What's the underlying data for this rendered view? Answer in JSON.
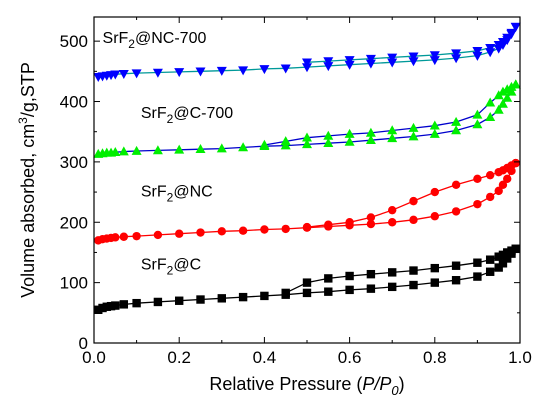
{
  "chart_data": {
    "type": "scatter",
    "title": "",
    "xlabel": "Relative Pressure (P/P0)",
    "xlabel_parts": {
      "prefix": "Relative Pressure (",
      "italic": "P/P",
      "subscript": "0",
      "suffix": ")"
    },
    "ylabel": "Volume absorbed, cm3/g,STP",
    "ylabel_parts": {
      "prefix": "Volume absorbed, cm",
      "superscript": "3",
      "suffix": "/g,STP"
    },
    "xlim": [
      0.0,
      1.0
    ],
    "ylim": [
      0,
      540
    ],
    "xticks": [
      "0.0",
      "0.2",
      "0.4",
      "0.6",
      "0.8",
      "1.0"
    ],
    "yticks": [
      "0",
      "100",
      "200",
      "300",
      "400",
      "500"
    ],
    "grid": false,
    "series": [
      {
        "name": "SrF2@C",
        "label_parts": {
          "base": "SrF",
          "subscript": "2",
          "rest": "@C"
        },
        "color": "#000000",
        "marker": "square",
        "adsorption": {
          "x": [
            0.01,
            0.02,
            0.03,
            0.04,
            0.05,
            0.07,
            0.1,
            0.15,
            0.2,
            0.25,
            0.3,
            0.35,
            0.4,
            0.45,
            0.5,
            0.55,
            0.6,
            0.65,
            0.7,
            0.75,
            0.8,
            0.85,
            0.9,
            0.93,
            0.95,
            0.96,
            0.97,
            0.98,
            0.99
          ],
          "y": [
            55,
            58,
            60,
            61,
            62,
            64,
            66,
            68,
            70,
            72,
            74,
            76,
            78,
            80,
            83,
            85,
            88,
            90,
            93,
            96,
            100,
            104,
            110,
            118,
            125,
            132,
            140,
            148,
            156
          ]
        },
        "desorption": {
          "x": [
            0.99,
            0.98,
            0.97,
            0.96,
            0.95,
            0.93,
            0.9,
            0.85,
            0.8,
            0.75,
            0.7,
            0.65,
            0.6,
            0.55,
            0.5,
            0.45
          ],
          "y": [
            156,
            153,
            150,
            146,
            143,
            138,
            133,
            128,
            124,
            120,
            117,
            114,
            111,
            107,
            100,
            83
          ]
        }
      },
      {
        "name": "SrF2@NC",
        "label_parts": {
          "base": "SrF",
          "subscript": "2",
          "rest": "@NC"
        },
        "color": "#ff0000",
        "marker": "circle",
        "adsorption": {
          "x": [
            0.01,
            0.02,
            0.03,
            0.04,
            0.05,
            0.07,
            0.1,
            0.15,
            0.2,
            0.25,
            0.3,
            0.35,
            0.4,
            0.45,
            0.5,
            0.55,
            0.6,
            0.65,
            0.7,
            0.75,
            0.8,
            0.85,
            0.9,
            0.93,
            0.95,
            0.96,
            0.97,
            0.98,
            0.99
          ],
          "y": [
            170,
            172,
            173,
            174,
            175,
            176,
            177,
            179,
            181,
            183,
            185,
            186,
            188,
            189,
            191,
            193,
            195,
            197,
            200,
            204,
            210,
            218,
            230,
            242,
            252,
            262,
            272,
            285,
            298
          ]
        },
        "desorption": {
          "x": [
            0.99,
            0.98,
            0.97,
            0.96,
            0.95,
            0.93,
            0.9,
            0.85,
            0.8,
            0.75,
            0.7,
            0.65,
            0.6,
            0.55,
            0.5
          ],
          "y": [
            298,
            294,
            290,
            286,
            283,
            278,
            272,
            262,
            250,
            235,
            220,
            208,
            200,
            196,
            192
          ]
        }
      },
      {
        "name": "SrF2@C-700",
        "label_parts": {
          "base": "SrF",
          "subscript": "2",
          "rest": "@C-700"
        },
        "color": "#00ee00",
        "line_color": "#0000cc",
        "marker": "triangle-up",
        "adsorption": {
          "x": [
            0.01,
            0.02,
            0.03,
            0.04,
            0.05,
            0.07,
            0.1,
            0.15,
            0.2,
            0.25,
            0.3,
            0.35,
            0.4,
            0.45,
            0.5,
            0.55,
            0.6,
            0.65,
            0.7,
            0.75,
            0.8,
            0.85,
            0.9,
            0.93,
            0.95,
            0.96,
            0.97,
            0.98,
            0.99
          ],
          "y": [
            313,
            314,
            315,
            315,
            316,
            317,
            318,
            319,
            320,
            321,
            322,
            324,
            326,
            327,
            329,
            331,
            333,
            336,
            339,
            342,
            346,
            352,
            362,
            374,
            386,
            396,
            406,
            416,
            428
          ]
        },
        "desorption": {
          "x": [
            0.99,
            0.98,
            0.97,
            0.96,
            0.95,
            0.93,
            0.9,
            0.85,
            0.8,
            0.75,
            0.7,
            0.65,
            0.6,
            0.55,
            0.5,
            0.45,
            0.4
          ],
          "y": [
            428,
            424,
            420,
            416,
            410,
            398,
            378,
            366,
            360,
            356,
            352,
            348,
            346,
            343,
            340,
            334,
            328
          ]
        }
      },
      {
        "name": "SrF2@NC-700",
        "label_parts": {
          "base": "SrF",
          "subscript": "2",
          "rest": "@NC-700"
        },
        "color": "#0000ff",
        "line_color": "#009999",
        "marker": "triangle-down",
        "adsorption": {
          "x": [
            0.01,
            0.02,
            0.03,
            0.04,
            0.05,
            0.07,
            0.1,
            0.15,
            0.2,
            0.25,
            0.3,
            0.35,
            0.4,
            0.45,
            0.5,
            0.55,
            0.6,
            0.65,
            0.7,
            0.75,
            0.8,
            0.85,
            0.9,
            0.93,
            0.95,
            0.96,
            0.97,
            0.98,
            0.99
          ],
          "y": [
            441,
            442,
            443,
            444,
            445,
            446,
            447,
            448,
            449,
            450,
            451,
            452,
            454,
            455,
            457,
            459,
            461,
            463,
            465,
            467,
            469,
            472,
            476,
            482,
            488,
            494,
            502,
            512,
            524
          ]
        },
        "desorption": {
          "x": [
            0.99,
            0.98,
            0.97,
            0.96,
            0.95,
            0.93,
            0.9,
            0.85,
            0.8,
            0.75,
            0.7,
            0.65,
            0.6,
            0.55,
            0.5
          ],
          "y": [
            524,
            514,
            506,
            499,
            494,
            489,
            484,
            480,
            477,
            475,
            473,
            471,
            469,
            467,
            465
          ]
        }
      }
    ],
    "series_labels": [
      {
        "series": 0,
        "at": [
          0.11,
          122
        ]
      },
      {
        "series": 1,
        "at": [
          0.11,
          243
        ]
      },
      {
        "series": 2,
        "at": [
          0.11,
          373
        ]
      },
      {
        "series": 3,
        "at": [
          0.02,
          497
        ]
      }
    ]
  }
}
